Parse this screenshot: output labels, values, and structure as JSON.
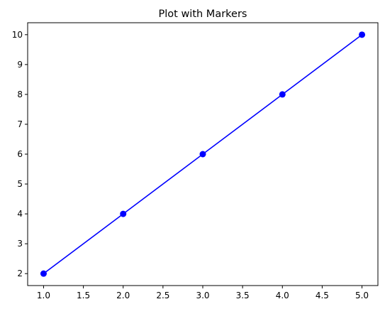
{
  "chart_data": {
    "type": "line",
    "title": "Plot with Markers",
    "xlabel": "",
    "ylabel": "",
    "xlim": [
      0.8,
      5.2
    ],
    "ylim": [
      1.6,
      10.4
    ],
    "xticks": [
      1.0,
      1.5,
      2.0,
      2.5,
      3.0,
      3.5,
      4.0,
      4.5,
      5.0
    ],
    "xtick_labels": [
      "1.0",
      "1.5",
      "2.0",
      "2.5",
      "3.0",
      "3.5",
      "4.0",
      "4.5",
      "5.0"
    ],
    "yticks": [
      2,
      3,
      4,
      5,
      6,
      7,
      8,
      9,
      10
    ],
    "ytick_labels": [
      "2",
      "3",
      "4",
      "5",
      "6",
      "7",
      "8",
      "9",
      "10"
    ],
    "grid": false,
    "legend": "none",
    "series": [
      {
        "x": [
          1,
          2,
          3,
          4,
          5
        ],
        "y": [
          2,
          4,
          6,
          8,
          10
        ],
        "color": "#0000ff",
        "marker": "circle",
        "line_style": "solid"
      }
    ]
  }
}
